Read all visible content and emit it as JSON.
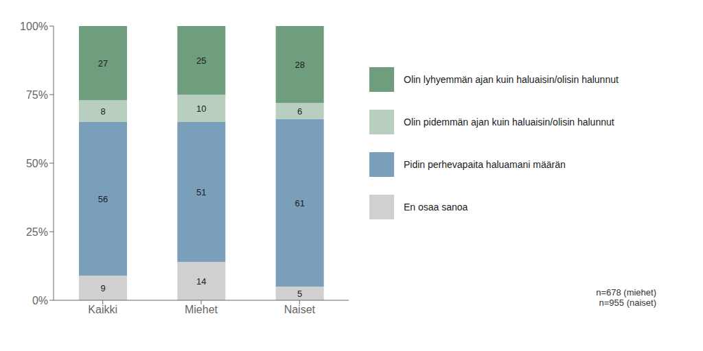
{
  "chart_data": {
    "type": "bar",
    "stacked": true,
    "categories": [
      "Kaikki",
      "Miehet",
      "Naiset"
    ],
    "series": [
      {
        "name": "En osaa sanoa",
        "values": [
          9,
          14,
          5
        ],
        "color": "#d0d0d0"
      },
      {
        "name": "Pidin perhevapaita haluamani määrän",
        "values": [
          56,
          51,
          61
        ],
        "color": "#7a9fbb"
      },
      {
        "name": "Olin pidemmän ajan kuin haluaisin/olisin halunnut",
        "values": [
          8,
          10,
          6
        ],
        "color": "#b8cfc0"
      },
      {
        "name": "Olin lyhyemmän ajan kuin haluaisin/olisin halunnut",
        "values": [
          27,
          25,
          28
        ],
        "color": "#6f9e7e"
      }
    ],
    "ylim": [
      0,
      100
    ],
    "yticks": [
      {
        "value": 0,
        "label": "0%"
      },
      {
        "value": 25,
        "label": "25%"
      },
      {
        "value": 50,
        "label": "50%"
      },
      {
        "value": 75,
        "label": "75%"
      },
      {
        "value": 100,
        "label": "100%"
      }
    ],
    "grid": false,
    "data_labels": true,
    "legend": "right",
    "annotation": "n=678 (miehet)\nn=955 (naiset)"
  }
}
